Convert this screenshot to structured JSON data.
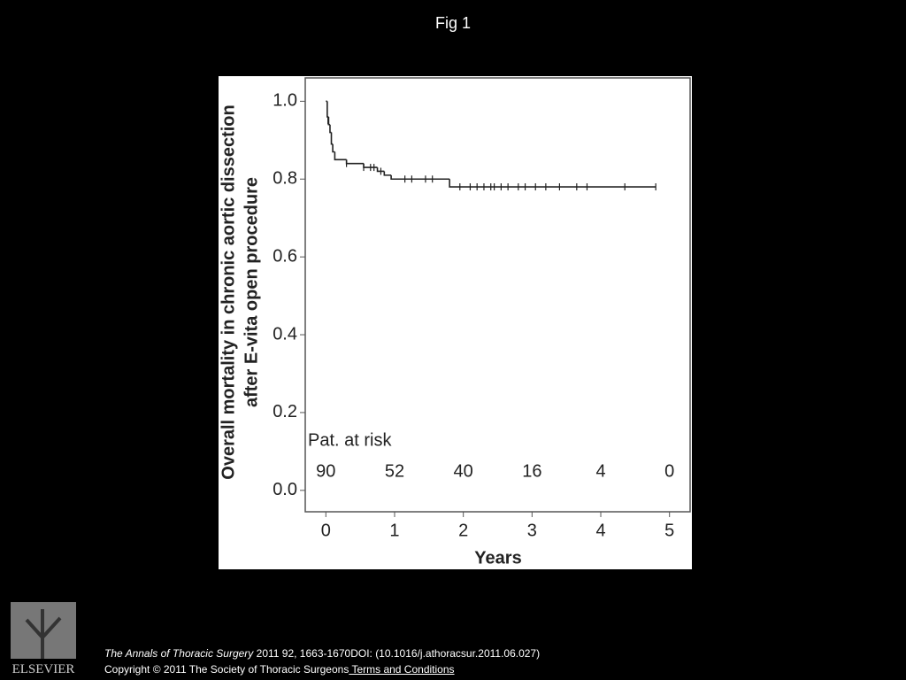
{
  "slide": {
    "title": "Fig 1"
  },
  "chart_data": {
    "type": "step",
    "ylabel": [
      "Overall mortality in chronic aortic dissection",
      "after E-vita open procedure"
    ],
    "xlabel": "Years",
    "x": [
      0,
      0.02,
      0.04,
      0.06,
      0.08,
      0.1,
      0.13,
      0.3,
      0.55,
      0.75,
      0.85,
      0.95,
      1.8,
      4.8
    ],
    "values": [
      1.0,
      0.96,
      0.94,
      0.92,
      0.89,
      0.87,
      0.85,
      0.84,
      0.83,
      0.82,
      0.81,
      0.8,
      0.78,
      0.78
    ],
    "color": "#222222",
    "censored": {
      "x": [
        0.03,
        0.3,
        0.55,
        0.65,
        0.7,
        0.8,
        1.15,
        1.25,
        1.45,
        1.55,
        1.95,
        2.1,
        2.2,
        2.3,
        2.4,
        2.45,
        2.55,
        2.65,
        2.8,
        2.9,
        3.05,
        3.2,
        3.4,
        3.65,
        3.8,
        4.35,
        4.8
      ],
      "values": [
        0.95,
        0.84,
        0.83,
        0.83,
        0.83,
        0.82,
        0.8,
        0.8,
        0.8,
        0.8,
        0.78,
        0.78,
        0.78,
        0.78,
        0.78,
        0.78,
        0.78,
        0.78,
        0.78,
        0.78,
        0.78,
        0.78,
        0.78,
        0.78,
        0.78,
        0.78,
        0.78
      ]
    },
    "xlim": [
      -0.3,
      5.3
    ],
    "ylim": [
      -0.055,
      1.06
    ],
    "xticks": [
      0,
      1,
      2,
      3,
      4,
      5
    ],
    "yticks": [
      {
        "value": 0,
        "label": "0.0"
      },
      {
        "value": 0.2,
        "label": "0.2"
      },
      {
        "value": 0.4,
        "label": "0.4"
      },
      {
        "value": 0.6,
        "label": "0.6"
      },
      {
        "value": 0.8,
        "label": "0.8"
      },
      {
        "value": 1,
        "label": "1.0"
      }
    ],
    "risk_label": "Pat. at risk",
    "at_risk": [
      90,
      52,
      40,
      16,
      4,
      0
    ]
  },
  "footer": {
    "journal": "The Annals of Thoracic Surgery",
    "citation": " 2011 92, 1663-1670DOI: (10.1016/j.athoracsur.2011.06.027)",
    "copyright": "Copyright © 2011 The Society of Thoracic Surgeons",
    "link": " Terms and Conditions"
  },
  "logo": "ELSEVIER"
}
